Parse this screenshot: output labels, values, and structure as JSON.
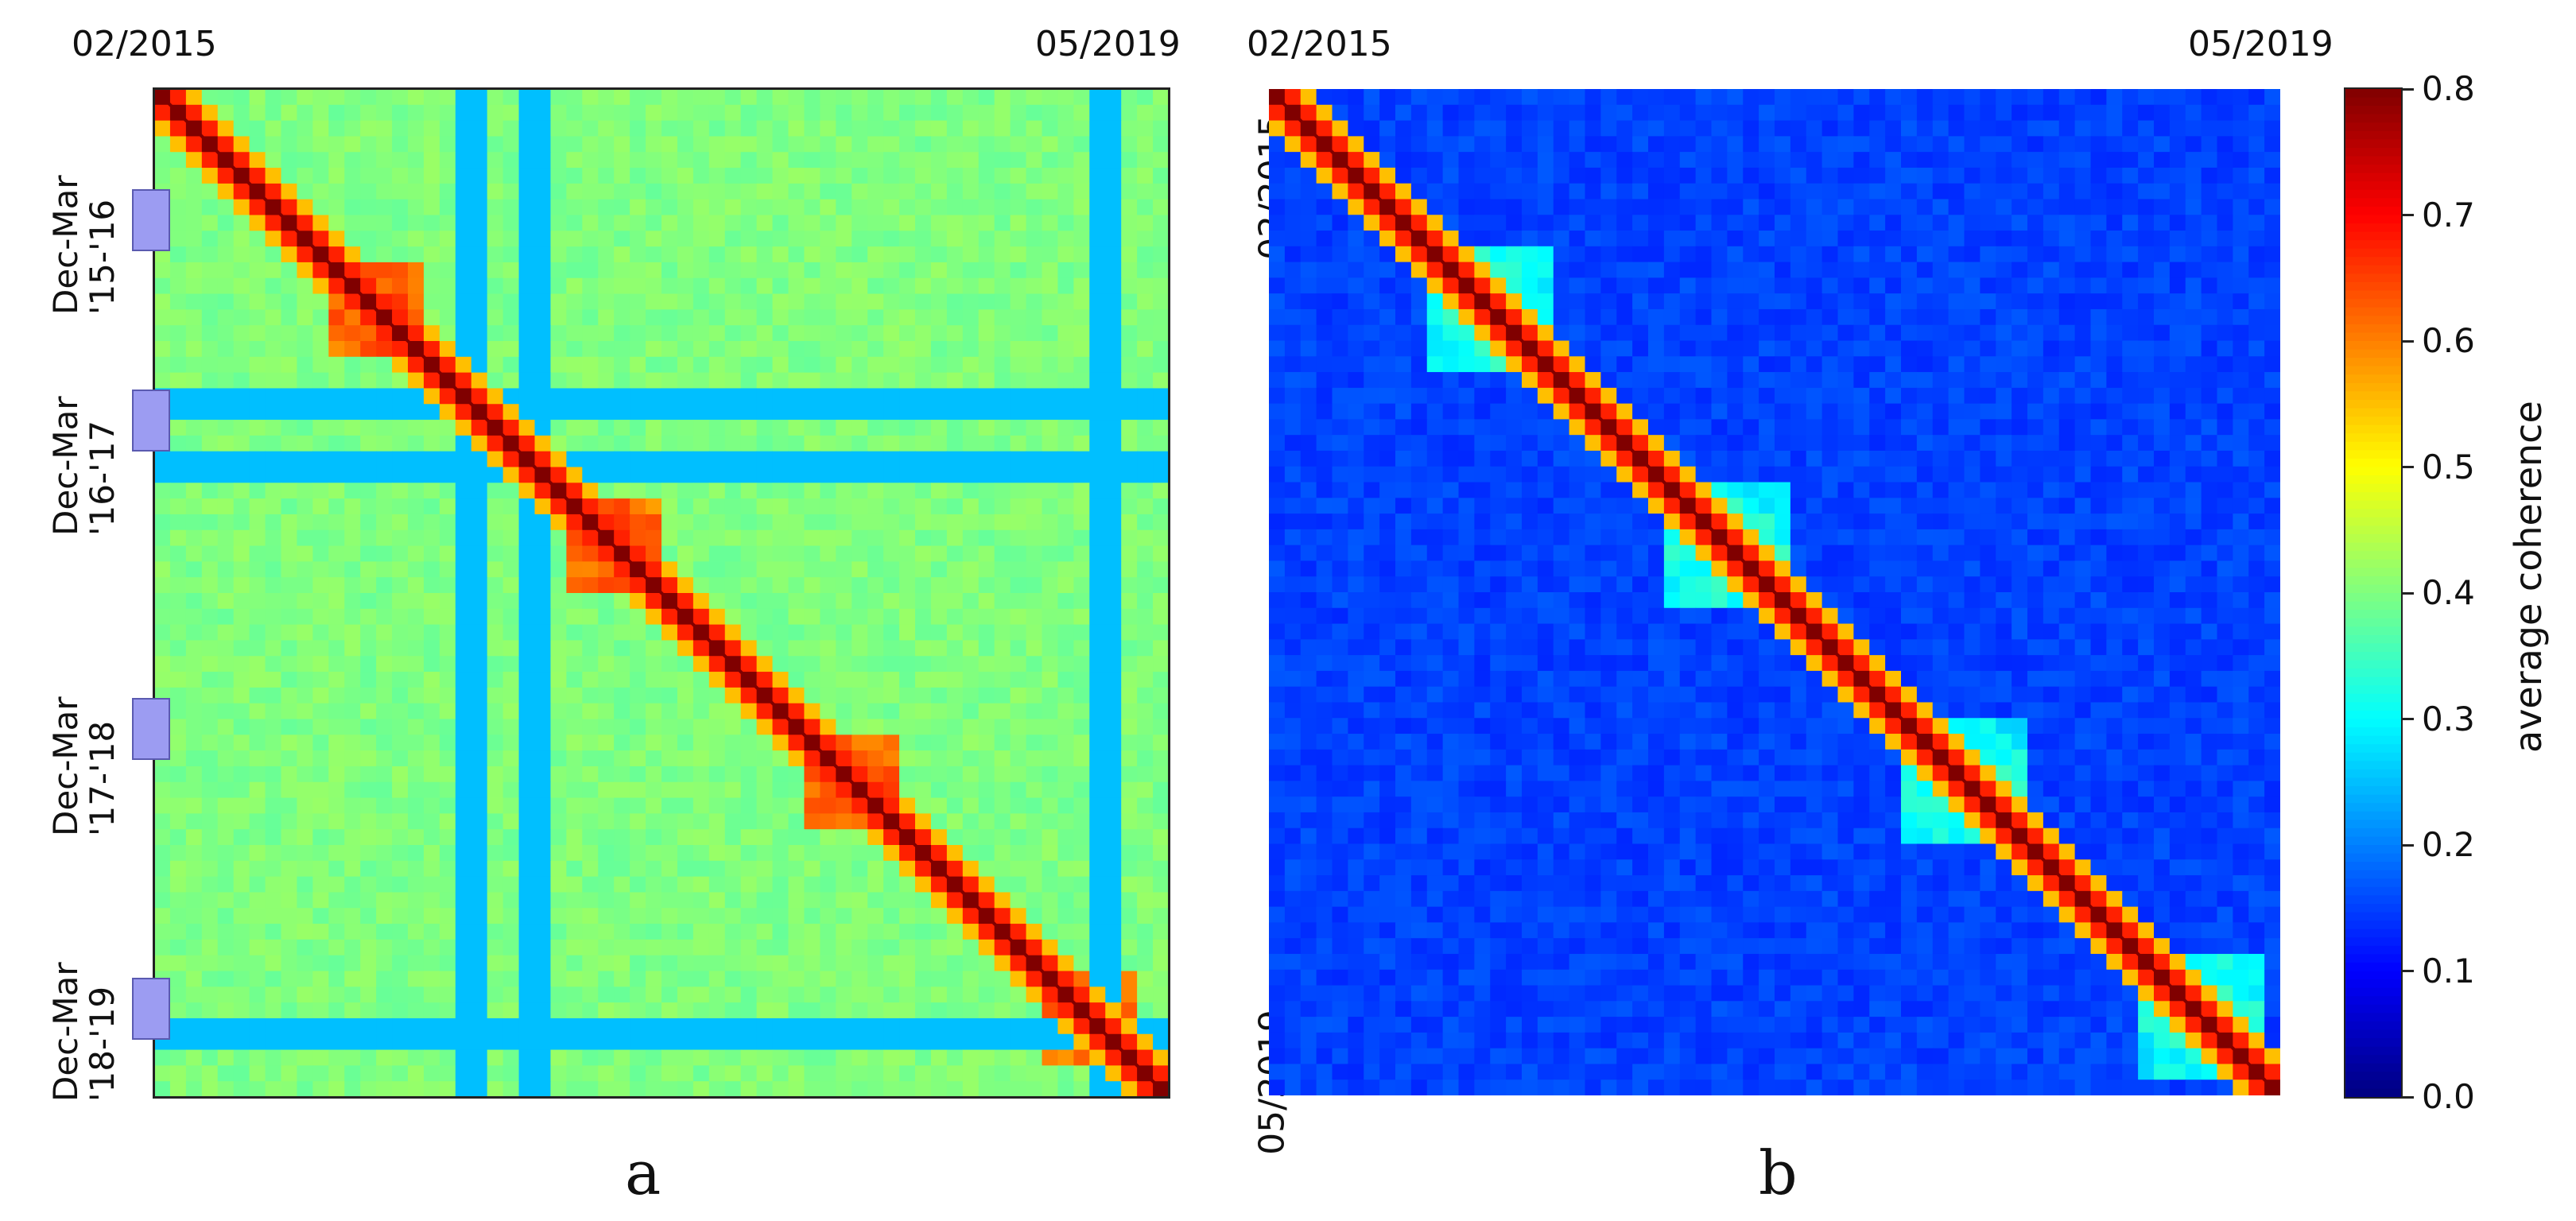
{
  "panels": [
    {
      "id": "a",
      "caption": "a",
      "top_ticks": [
        "02/2015",
        "05/2019"
      ],
      "seasons": [
        {
          "line1": "Dec-Mar",
          "line2": "'15-'16"
        },
        {
          "line1": "Dec-Mar",
          "line2": "'16-'17"
        },
        {
          "line1": "Dec-Mar",
          "line2": "'17-'18"
        },
        {
          "line1": "Dec-Mar",
          "line2": "'18-'19"
        }
      ]
    },
    {
      "id": "b",
      "caption": "b",
      "top_ticks": [
        "02/2015",
        "05/2019"
      ],
      "left_ticks": [
        "02/2015",
        "05/2019"
      ]
    }
  ],
  "colorbar": {
    "label": "average coherence",
    "ticks": [
      "0.0",
      "0.1",
      "0.2",
      "0.3",
      "0.4",
      "0.5",
      "0.6",
      "0.7",
      "0.8"
    ],
    "range": [
      0.0,
      0.8
    ],
    "colormap": "jet"
  },
  "chart_data": [
    {
      "type": "heatmap",
      "panel": "a",
      "x_range": [
        "02/2015",
        "05/2019"
      ],
      "y_range": [
        "02/2015",
        "05/2019"
      ],
      "background_coherence": 0.4,
      "diagonal_coherence": 0.8,
      "low_coherence_bands_time": [
        "06/2016",
        "09/2016",
        "02/2019"
      ],
      "low_band_coherence": 0.25,
      "high_coherence_blocks": [
        {
          "period": "Dec-Mar '15-'16",
          "value": 0.65
        },
        {
          "period": "Dec-Mar '16-'17",
          "value": 0.65
        },
        {
          "period": "Dec-Mar '17-'18",
          "value": 0.65
        },
        {
          "period": "Dec-Mar '18-'19",
          "value": 0.65
        }
      ]
    },
    {
      "type": "heatmap",
      "panel": "b",
      "x_range": [
        "02/2015",
        "05/2019"
      ],
      "y_range": [
        "02/2015",
        "05/2019"
      ],
      "background_coherence": 0.15,
      "diagonal_coherence": 0.8,
      "high_coherence_blocks": [
        {
          "period": "Dec-Mar '15-'16",
          "value": 0.35
        },
        {
          "period": "Dec-Mar '16-'17",
          "value": 0.35
        },
        {
          "period": "Dec-Mar '17-'18",
          "value": 0.35
        },
        {
          "period": "Dec-Mar '18-'19",
          "value": 0.35
        }
      ]
    }
  ],
  "colors": {
    "jet_low": "#00007f",
    "jet_blue": "#0000ff",
    "jet_cyan": "#00ffff",
    "jet_yellow": "#ffff00",
    "jet_red": "#ff0000",
    "jet_high": "#7f0000",
    "season_marker": "#9c9cf2"
  }
}
